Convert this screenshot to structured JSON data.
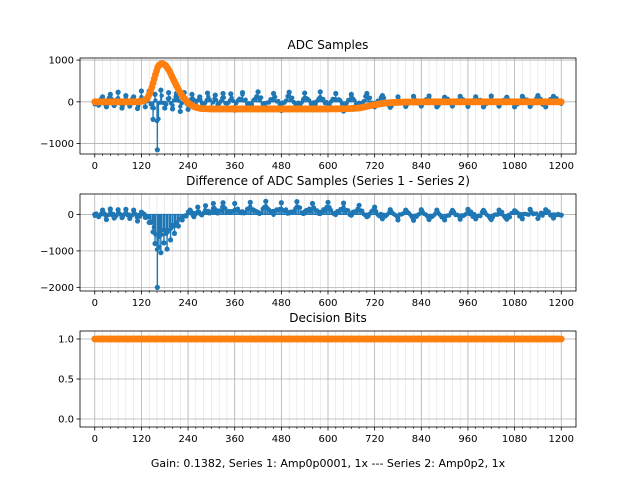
{
  "figure": {
    "footer": "Gain: 0.1382, Series 1: Amp0p0001, 1x --- Series 2: Amp0p2, 1x"
  },
  "colors": {
    "series1": "#1f77b4",
    "series2": "#ff7f0e",
    "grid": "#b0b0b0",
    "axis": "#000000"
  },
  "chart_data": [
    {
      "type": "stem",
      "title": "ADC Samples",
      "xlim": [
        -38,
        1238
      ],
      "ylim": [
        -1250,
        1050
      ],
      "xticks": [
        0,
        120,
        240,
        360,
        480,
        600,
        720,
        840,
        960,
        1080,
        1200
      ],
      "xtick_labels": [
        "0",
        "120",
        "240",
        "360",
        "480",
        "600",
        "720",
        "840",
        "960",
        "1080",
        "1200"
      ],
      "yticks": [
        -1000,
        0,
        1000
      ],
      "ytick_labels": [
        "−1000",
        "0",
        "1000"
      ],
      "grid": true,
      "series": [
        {
          "name": "Series 1",
          "style": "stem",
          "points": [
            [
              0,
              0
            ],
            [
              10,
              -80
            ],
            [
              20,
              120
            ],
            [
              30,
              -120
            ],
            [
              40,
              180
            ],
            [
              50,
              -90
            ],
            [
              60,
              230
            ],
            [
              70,
              -150
            ],
            [
              80,
              150
            ],
            [
              90,
              -100
            ],
            [
              100,
              120
            ],
            [
              110,
              -160
            ],
            [
              120,
              260
            ],
            [
              130,
              -120
            ],
            [
              140,
              260
            ],
            [
              150,
              -420
            ],
            [
              155,
              180
            ],
            [
              161,
              -1150
            ],
            [
              170,
              280
            ],
            [
              180,
              -150
            ],
            [
              190,
              220
            ],
            [
              200,
              -170
            ],
            [
              210,
              200
            ],
            [
              220,
              -230
            ],
            [
              230,
              220
            ],
            [
              240,
              -180
            ],
            [
              250,
              180
            ],
            [
              260,
              -150
            ],
            [
              270,
              120
            ],
            [
              280,
              -170
            ],
            [
              290,
              210
            ],
            [
              300,
              -180
            ],
            [
              310,
              160
            ],
            [
              320,
              -140
            ],
            [
              330,
              200
            ],
            [
              340,
              -160
            ],
            [
              350,
              190
            ],
            [
              360,
              -200
            ],
            [
              380,
              220
            ],
            [
              400,
              -180
            ],
            [
              420,
              240
            ],
            [
              440,
              -160
            ],
            [
              460,
              200
            ],
            [
              480,
              -210
            ],
            [
              500,
              230
            ],
            [
              520,
              -170
            ],
            [
              540,
              210
            ],
            [
              560,
              -190
            ],
            [
              580,
              240
            ],
            [
              600,
              -160
            ],
            [
              620,
              200
            ],
            [
              640,
              -220
            ],
            [
              660,
              180
            ],
            [
              680,
              -150
            ],
            [
              700,
              200
            ],
            [
              720,
              -120
            ],
            [
              740,
              150
            ],
            [
              760,
              -130
            ],
            [
              780,
              120
            ],
            [
              800,
              -110
            ],
            [
              820,
              130
            ],
            [
              840,
              -100
            ],
            [
              860,
              140
            ],
            [
              880,
              -120
            ],
            [
              900,
              110
            ],
            [
              920,
              -100
            ],
            [
              940,
              130
            ],
            [
              960,
              -110
            ],
            [
              980,
              120
            ],
            [
              1000,
              -120
            ],
            [
              1020,
              140
            ],
            [
              1040,
              -100
            ],
            [
              1060,
              110
            ],
            [
              1080,
              -120
            ],
            [
              1100,
              130
            ],
            [
              1120,
              -110
            ],
            [
              1140,
              150
            ],
            [
              1160,
              -120
            ],
            [
              1180,
              130
            ],
            [
              1200,
              -30
            ]
          ]
        },
        {
          "name": "Series 2",
          "style": "dense-markers",
          "points": [
            [
              0,
              0
            ],
            [
              110,
              0
            ],
            [
              125,
              20
            ],
            [
              135,
              80
            ],
            [
              145,
              280
            ],
            [
              155,
              620
            ],
            [
              163,
              860
            ],
            [
              172,
              920
            ],
            [
              182,
              880
            ],
            [
              192,
              740
            ],
            [
              202,
              540
            ],
            [
              215,
              300
            ],
            [
              228,
              100
            ],
            [
              242,
              -40
            ],
            [
              256,
              -120
            ],
            [
              272,
              -160
            ],
            [
              300,
              -170
            ],
            [
              400,
              -170
            ],
            [
              500,
              -170
            ],
            [
              600,
              -170
            ],
            [
              650,
              -165
            ],
            [
              680,
              -150
            ],
            [
              700,
              -110
            ],
            [
              720,
              -70
            ],
            [
              740,
              -40
            ],
            [
              760,
              -20
            ],
            [
              800,
              -5
            ],
            [
              850,
              0
            ],
            [
              1000,
              0
            ],
            [
              1200,
              0
            ]
          ]
        }
      ]
    },
    {
      "type": "stem",
      "title": "Difference of ADC Samples (Series 1 - Series 2)",
      "xlim": [
        -38,
        1238
      ],
      "ylim": [
        -2100,
        560
      ],
      "xticks": [
        0,
        120,
        240,
        360,
        480,
        600,
        720,
        840,
        960,
        1080,
        1200
      ],
      "xtick_labels": [
        "0",
        "120",
        "240",
        "360",
        "480",
        "600",
        "720",
        "840",
        "960",
        "1080",
        "1200"
      ],
      "yticks": [
        -2000,
        -1000,
        0
      ],
      "ytick_labels": [
        "−2000",
        "−1000",
        "0"
      ],
      "grid": true,
      "series": [
        {
          "name": "Difference",
          "style": "stem",
          "points": [
            [
              0,
              0
            ],
            [
              10,
              -60
            ],
            [
              20,
              120
            ],
            [
              30,
              -140
            ],
            [
              40,
              150
            ],
            [
              50,
              -100
            ],
            [
              60,
              130
            ],
            [
              70,
              -90
            ],
            [
              80,
              140
            ],
            [
              90,
              -110
            ],
            [
              100,
              120
            ],
            [
              110,
              -180
            ],
            [
              120,
              60
            ],
            [
              130,
              -80
            ],
            [
              140,
              -220
            ],
            [
              150,
              -480
            ],
            [
              155,
              -800
            ],
            [
              161,
              -2000
            ],
            [
              165,
              -900
            ],
            [
              170,
              -1050
            ],
            [
              178,
              -780
            ],
            [
              186,
              -950
            ],
            [
              195,
              -700
            ],
            [
              205,
              -520
            ],
            [
              215,
              -320
            ],
            [
              225,
              -150
            ],
            [
              235,
              -30
            ],
            [
              245,
              120
            ],
            [
              255,
              -60
            ],
            [
              265,
              200
            ],
            [
              275,
              -10
            ],
            [
              285,
              240
            ],
            [
              295,
              40
            ],
            [
              305,
              300
            ],
            [
              315,
              60
            ],
            [
              330,
              320
            ],
            [
              345,
              80
            ],
            [
              360,
              300
            ],
            [
              380,
              60
            ],
            [
              400,
              330
            ],
            [
              420,
              50
            ],
            [
              440,
              360
            ],
            [
              460,
              80
            ],
            [
              480,
              320
            ],
            [
              500,
              40
            ],
            [
              520,
              350
            ],
            [
              540,
              70
            ],
            [
              560,
              300
            ],
            [
              580,
              60
            ],
            [
              600,
              330
            ],
            [
              620,
              40
            ],
            [
              640,
              310
            ],
            [
              660,
              -20
            ],
            [
              680,
              250
            ],
            [
              700,
              -60
            ],
            [
              720,
              200
            ],
            [
              740,
              -120
            ],
            [
              760,
              130
            ],
            [
              780,
              -150
            ],
            [
              800,
              120
            ],
            [
              820,
              -160
            ],
            [
              840,
              130
            ],
            [
              860,
              -140
            ],
            [
              880,
              120
            ],
            [
              900,
              -150
            ],
            [
              920,
              110
            ],
            [
              940,
              -130
            ],
            [
              960,
              140
            ],
            [
              980,
              -120
            ],
            [
              1000,
              110
            ],
            [
              1020,
              -140
            ],
            [
              1040,
              120
            ],
            [
              1060,
              -130
            ],
            [
              1080,
              100
            ],
            [
              1100,
              -120
            ],
            [
              1120,
              140
            ],
            [
              1140,
              -110
            ],
            [
              1160,
              130
            ],
            [
              1180,
              -100
            ],
            [
              1200,
              -20
            ]
          ]
        }
      ]
    },
    {
      "type": "scatter",
      "title": "Decision Bits",
      "xlim": [
        -38,
        1238
      ],
      "ylim": [
        -0.1,
        1.1
      ],
      "xticks": [
        0,
        120,
        240,
        360,
        480,
        600,
        720,
        840,
        960,
        1080,
        1200
      ],
      "xtick_labels": [
        "0",
        "120",
        "240",
        "360",
        "480",
        "600",
        "720",
        "840",
        "960",
        "1080",
        "1200"
      ],
      "yticks": [
        0.0,
        0.5,
        1.0
      ],
      "ytick_labels": [
        "0.0",
        "0.5",
        "1.0"
      ],
      "grid": true,
      "series": [
        {
          "name": "Decision",
          "style": "dense-markers",
          "points": [
            [
              0,
              1
            ],
            [
              1200,
              1
            ]
          ]
        }
      ]
    }
  ]
}
